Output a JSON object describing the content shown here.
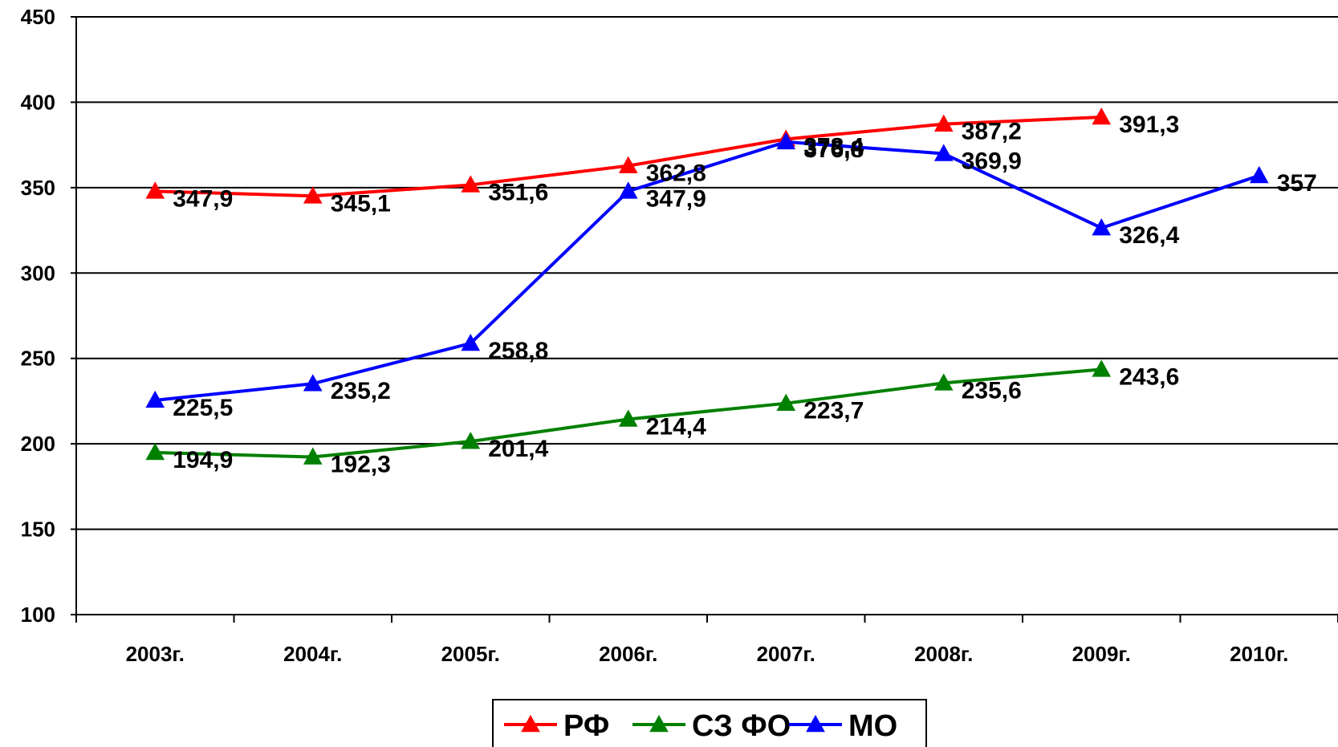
{
  "chart_data": {
    "type": "line",
    "categories": [
      "2003г.",
      "2004г.",
      "2005г.",
      "2006г.",
      "2007г.",
      "2008г.",
      "2009г.",
      "2010г."
    ],
    "ylim": [
      100,
      450
    ],
    "yticks": [
      100,
      150,
      200,
      250,
      300,
      350,
      400,
      450
    ],
    "grid": true,
    "legend_position": "bottom",
    "series": [
      {
        "name": "РФ",
        "color": "#ff0000",
        "values": [
          347.9,
          345.1,
          351.6,
          362.8,
          378.4,
          387.2,
          391.3,
          null
        ],
        "labels": [
          "347,9",
          "345,1",
          "351,6",
          "362,8",
          "378,4",
          "387,2",
          "391,3",
          ""
        ]
      },
      {
        "name": "СЗ ФО",
        "color": "#008000",
        "values": [
          194.9,
          192.3,
          201.4,
          214.4,
          223.7,
          235.6,
          243.6,
          null
        ],
        "labels": [
          "194,9",
          "192,3",
          "201,4",
          "214,4",
          "223,7",
          "235,6",
          "243,6",
          ""
        ]
      },
      {
        "name": "МО",
        "color": "#0000ff",
        "values": [
          225.5,
          235.2,
          258.8,
          347.9,
          376.8,
          369.9,
          326.4,
          357
        ],
        "labels": [
          "225,5",
          "235,2",
          "258,8",
          "347,9",
          "376,8",
          "369,9",
          "326,4",
          "357"
        ]
      }
    ]
  }
}
